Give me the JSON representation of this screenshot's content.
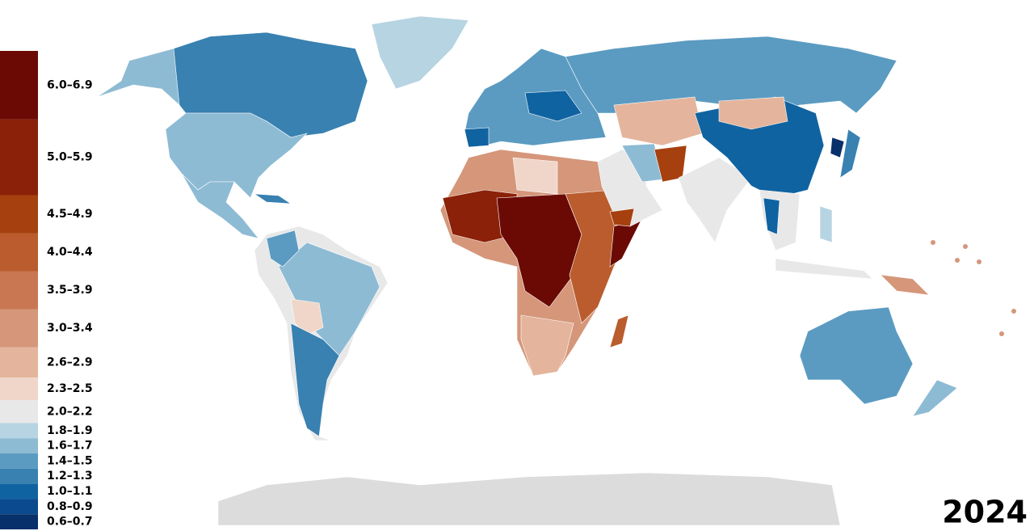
{
  "title": "2024",
  "legend": [
    {
      "label": "6.0–6.9",
      "min": 6.0,
      "max": 6.9,
      "color": "#6b0a05"
    },
    {
      "label": "5.0–5.9",
      "min": 5.0,
      "max": 5.9,
      "color": "#8a2108"
    },
    {
      "label": "4.5–4.9",
      "min": 4.5,
      "max": 4.9,
      "color": "#a6400e"
    },
    {
      "label": "4.0–4.4",
      "min": 4.0,
      "max": 4.4,
      "color": "#ba5c2d"
    },
    {
      "label": "3.5–3.9",
      "min": 3.5,
      "max": 3.9,
      "color": "#c97752"
    },
    {
      "label": "3.0–3.4",
      "min": 3.0,
      "max": 3.4,
      "color": "#d5967a"
    },
    {
      "label": "2.6–2.9",
      "min": 2.6,
      "max": 2.9,
      "color": "#e4b49c"
    },
    {
      "label": "2.3–2.5",
      "min": 2.3,
      "max": 2.5,
      "color": "#f0d6c9"
    },
    {
      "label": "2.0–2.2",
      "min": 2.0,
      "max": 2.2,
      "color": "#e8e8e8"
    },
    {
      "label": "1.8–1.9",
      "min": 1.8,
      "max": 1.9,
      "color": "#b7d4e2"
    },
    {
      "label": "1.6–1.7",
      "min": 1.6,
      "max": 1.7,
      "color": "#8ebbd4"
    },
    {
      "label": "1.4–1.5",
      "min": 1.4,
      "max": 1.5,
      "color": "#5b9bc1"
    },
    {
      "label": "1.2–1.3",
      "min": 1.2,
      "max": 1.3,
      "color": "#3881b1"
    },
    {
      "label": "1.0–1.1",
      "min": 1.0,
      "max": 1.1,
      "color": "#1063a1"
    },
    {
      "label": "0.8–0.9",
      "min": 0.8,
      "max": 0.9,
      "color": "#0b4a8f"
    },
    {
      "label": "0.6–0.7",
      "min": 0.6,
      "max": 0.7,
      "color": "#08306b"
    }
  ]
}
